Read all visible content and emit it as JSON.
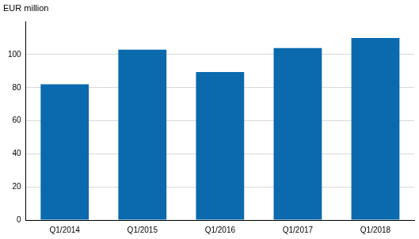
{
  "chart_data": {
    "type": "bar",
    "ylabel": "EUR million",
    "categories": [
      "Q1/2014",
      "Q1/2015",
      "Q1/2016",
      "Q1/2017",
      "Q1/2018"
    ],
    "values": [
      82,
      103,
      89.5,
      104,
      110
    ],
    "color": "#0a6aad",
    "ylim": [
      0,
      120
    ],
    "yticks": [
      0,
      20,
      40,
      60,
      80,
      100
    ],
    "grid": true
  }
}
